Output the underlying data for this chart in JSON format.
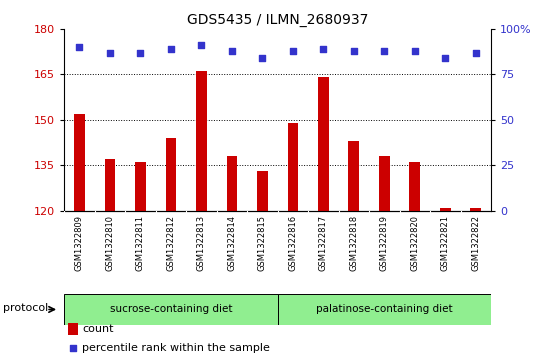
{
  "title": "GDS5435 / ILMN_2680937",
  "samples": [
    "GSM1322809",
    "GSM1322810",
    "GSM1322811",
    "GSM1322812",
    "GSM1322813",
    "GSM1322814",
    "GSM1322815",
    "GSM1322816",
    "GSM1322817",
    "GSM1322818",
    "GSM1322819",
    "GSM1322820",
    "GSM1322821",
    "GSM1322822"
  ],
  "counts": [
    152,
    137,
    136,
    144,
    166,
    138,
    133,
    149,
    164,
    143,
    138,
    136,
    121,
    121
  ],
  "percentiles": [
    90,
    87,
    87,
    89,
    91,
    88,
    84,
    88,
    89,
    88,
    88,
    88,
    84,
    87
  ],
  "ylim_left": [
    120,
    180
  ],
  "ylim_right": [
    0,
    100
  ],
  "yticks_left": [
    120,
    135,
    150,
    165,
    180
  ],
  "yticks_right": [
    0,
    25,
    50,
    75,
    100
  ],
  "bar_color": "#cc0000",
  "scatter_color": "#3333cc",
  "grid_lines": [
    135,
    150,
    165
  ],
  "base": 120,
  "sucrose_count": 7,
  "palatinose_count": 7,
  "protocol_label": "protocol",
  "sucrose_label": "sucrose-containing diet",
  "palatinose_label": "palatinose-containing diet",
  "legend_count_label": "count",
  "legend_percentile_label": "percentile rank within the sample",
  "title_fontsize": 10,
  "tick_fontsize": 8,
  "sample_fontsize": 6,
  "bar_width": 0.35,
  "bg_color": "#ffffff",
  "xtick_bg": "#d8d8d8",
  "green_color": "#90ee90"
}
